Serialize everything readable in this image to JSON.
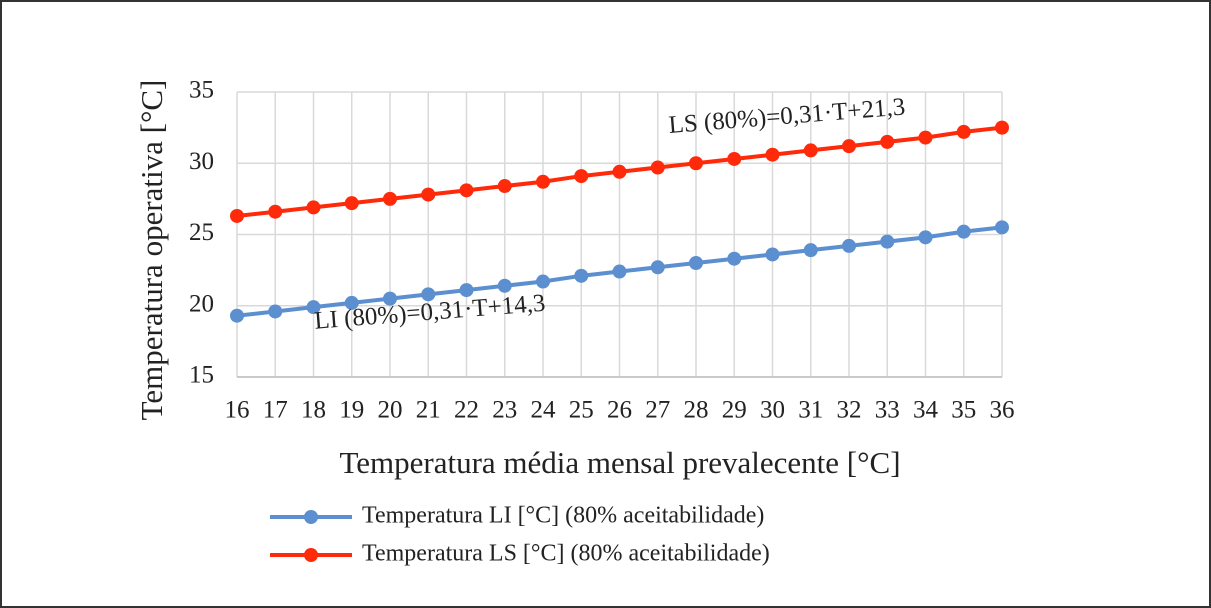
{
  "chart_data": {
    "type": "line",
    "x_label": "Temperatura média mensal prevalecente [°C]",
    "y_label": "Temperatura operativa  [°C]",
    "x": [
      16,
      17,
      18,
      19,
      20,
      21,
      22,
      23,
      24,
      25,
      26,
      27,
      28,
      29,
      30,
      31,
      32,
      33,
      34,
      35,
      36
    ],
    "series": [
      {
        "name": "Temperatura LI [°C] (80% aceitabilidade)",
        "color": "#5b8fd0",
        "values": [
          19.3,
          19.6,
          19.9,
          20.2,
          20.5,
          20.8,
          21.1,
          21.4,
          21.7,
          22.1,
          22.4,
          22.7,
          23.0,
          23.3,
          23.6,
          23.9,
          24.2,
          24.5,
          24.8,
          25.2,
          25.5
        ]
      },
      {
        "name": "Temperatura LS [°C] (80% aceitabilidade)",
        "color": "#ff2a0a",
        "values": [
          26.3,
          26.6,
          26.9,
          27.2,
          27.5,
          27.8,
          28.1,
          28.4,
          28.7,
          29.1,
          29.4,
          29.7,
          30.0,
          30.3,
          30.6,
          30.9,
          31.2,
          31.5,
          31.8,
          32.2,
          32.5
        ]
      }
    ],
    "annotations": [
      "LI (80%)=0,31·T+14,3",
      "LS (80%)=0,31·T+21,3"
    ],
    "xlim": [
      16,
      36
    ],
    "xticks": [
      16,
      17,
      18,
      19,
      20,
      21,
      22,
      23,
      24,
      25,
      26,
      27,
      28,
      29,
      30,
      31,
      32,
      33,
      34,
      35,
      36
    ],
    "ylim": [
      15,
      35
    ],
    "yticks": [
      15,
      20,
      25,
      30,
      35
    ],
    "grid": true,
    "legend": "bottom"
  }
}
